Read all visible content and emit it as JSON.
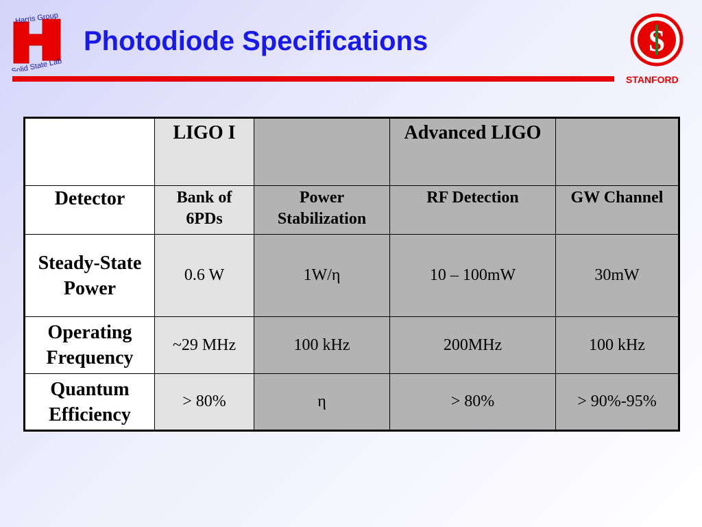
{
  "header": {
    "title": "Photodiode Specifications",
    "logo_top": "Harris Group",
    "logo_bottom": "Solid State Lab",
    "stanford": "STANFORD"
  },
  "table": {
    "header": [
      "LIGO I",
      "Advanced LIGO"
    ],
    "rows": [
      [
        "Detector",
        "Bank of 6PDs",
        "Power Stabilization",
        "RF Detection",
        "GW Channel"
      ],
      [
        "Steady-State Power",
        "0.6 W",
        "1W/η",
        "10 – 100mW",
        "30mW"
      ],
      [
        "Operating Frequency",
        "~29 MHz",
        "100 kHz",
        "200MHz",
        "100 kHz"
      ],
      [
        "Quantum Efficiency",
        "> 80%",
        "η",
        "> 80%",
        "> 90%-95%"
      ]
    ]
  }
}
